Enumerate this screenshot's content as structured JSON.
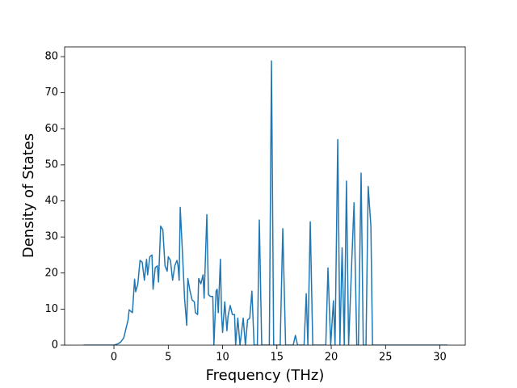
{
  "chart_data": {
    "type": "line",
    "xlabel": "Frequency (THz)",
    "ylabel": "Density of States",
    "color": "#1f77b4",
    "x": [
      -2.8,
      0,
      0.3,
      0.6,
      0.9,
      1.1,
      1.3,
      1.4,
      1.7,
      1.9,
      2.0,
      2.2,
      2.4,
      2.6,
      2.8,
      3.0,
      3.1,
      3.3,
      3.5,
      3.6,
      3.8,
      4.0,
      4.1,
      4.3,
      4.5,
      4.7,
      4.9,
      5.0,
      5.2,
      5.4,
      5.6,
      5.8,
      5.9,
      6.0,
      6.1,
      6.3,
      6.5,
      6.7,
      6.8,
      7.0,
      7.2,
      7.4,
      7.5,
      7.7,
      7.8,
      8.0,
      8.2,
      8.3,
      8.55,
      8.7,
      8.9,
      9.1,
      9.2,
      9.4,
      9.5,
      9.6,
      9.8,
      9.9,
      10.0,
      10.2,
      10.4,
      10.5,
      10.7,
      10.9,
      11.1,
      11.2,
      11.4,
      11.6,
      11.9,
      12.1,
      12.3,
      12.5,
      12.7,
      12.9,
      13.2,
      13.38,
      13.6,
      14.3,
      14.5,
      14.7,
      15.3,
      15.54,
      15.8,
      16.5,
      16.7,
      16.9,
      17.5,
      17.7,
      17.85,
      18.07,
      18.3,
      19.5,
      19.7,
      19.95,
      20.2,
      20.35,
      20.6,
      20.8,
      21.0,
      21.2,
      21.4,
      21.6,
      21.9,
      22.1,
      22.35,
      22.5,
      22.75,
      22.95,
      23.2,
      23.4,
      23.65,
      23.8,
      30.7
    ],
    "values": [
      0,
      0,
      0.3,
      0.8,
      2,
      4.5,
      7,
      9.8,
      9,
      18.3,
      14.8,
      17,
      23.5,
      23,
      18,
      23.8,
      19.5,
      24.5,
      25,
      15.5,
      21.5,
      22,
      17.5,
      33,
      32,
      22,
      20.5,
      24.5,
      23.5,
      18,
      22,
      23.5,
      22,
      18,
      38.2,
      26,
      13,
      5.5,
      18.5,
      15,
      12.5,
      12,
      9,
      8.5,
      18.5,
      17,
      19.5,
      13,
      36.2,
      14,
      13.5,
      13.5,
      0,
      15,
      15.5,
      9,
      23.8,
      9,
      3.5,
      12,
      4,
      8,
      11,
      8.5,
      8.5,
      0,
      7.5,
      0,
      7.5,
      0,
      7,
      7.5,
      15,
      0,
      0,
      34.7,
      0,
      0,
      78.8,
      0,
      0,
      32.3,
      0,
      0,
      2.7,
      0,
      0,
      14.3,
      0,
      34.2,
      0,
      0,
      21.4,
      0,
      12.3,
      0,
      57,
      0,
      27,
      0,
      45.5,
      0,
      24,
      39.5,
      0,
      0,
      47.7,
      0,
      0,
      44,
      33,
      0,
      0
    ],
    "xlim": [
      -4.54,
      32.34
    ],
    "ylim": [
      0,
      82.7
    ],
    "xticks": [
      0,
      5,
      10,
      15,
      20,
      25,
      30
    ],
    "yticks": [
      0,
      10,
      20,
      30,
      40,
      50,
      60,
      70,
      80
    ]
  }
}
